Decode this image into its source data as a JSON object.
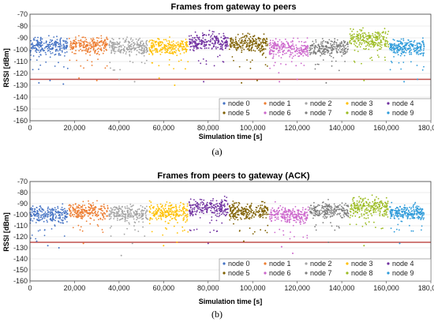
{
  "chart_data": [
    {
      "type": "scatter",
      "panel_label": "(a)",
      "title": "Frames from gateway to peers",
      "xlabel": "Simulation time [s]",
      "ylabel": "RSSI [dBm]",
      "xlim": [
        0,
        180000
      ],
      "ylim": [
        -160,
        -70
      ],
      "xticks": [
        "0",
        "20,000",
        "40,000",
        "60,000",
        "80,000",
        "100,000",
        "120,000",
        "140,000",
        "160,000",
        "180,000"
      ],
      "yticks": [
        "-70",
        "-80",
        "-90",
        "-100",
        "-110",
        "-120",
        "-130",
        "-140",
        "-150",
        "-160"
      ],
      "threshold": -125,
      "grid": true,
      "legend_position": "bottom-right",
      "series": [
        {
          "name": "node 0",
          "color": "#4472c4",
          "t_range": [
            0,
            17000
          ],
          "rssi_range": [
            -108,
            -86
          ],
          "outliers": [
            [
              4000,
              -128
            ],
            [
              9000,
              -126
            ],
            [
              15000,
              -129
            ]
          ]
        },
        {
          "name": "node 1",
          "color": "#ed7d31",
          "t_range": [
            17500,
            35000
          ],
          "rssi_range": [
            -106,
            -86
          ],
          "outliers": [
            [
              22000,
              -124
            ],
            [
              30000,
              -126
            ]
          ]
        },
        {
          "name": "node 2",
          "color": "#a5a5a5",
          "t_range": [
            35500,
            53000
          ],
          "rssi_range": [
            -108,
            -88
          ],
          "outliers": [
            [
              40000,
              -125
            ],
            [
              47000,
              -127
            ]
          ]
        },
        {
          "name": "node 3",
          "color": "#ffc000",
          "t_range": [
            53500,
            71000
          ],
          "rssi_range": [
            -108,
            -88
          ],
          "outliers": [
            [
              58000,
              -124
            ],
            [
              65000,
              -130
            ]
          ]
        },
        {
          "name": "node 4",
          "color": "#7030a0",
          "t_range": [
            71500,
            89000
          ],
          "rssi_range": [
            -104,
            -82
          ],
          "outliers": [
            [
              78000,
              -127
            ]
          ]
        },
        {
          "name": "node 5",
          "color": "#7f6000",
          "t_range": [
            89500,
            107000
          ],
          "rssi_range": [
            -106,
            -84
          ],
          "outliers": [
            [
              95000,
              -128
            ],
            [
              102000,
              -126
            ]
          ]
        },
        {
          "name": "node 6",
          "color": "#cc66cc",
          "t_range": [
            107500,
            125000
          ],
          "rssi_range": [
            -110,
            -88
          ],
          "outliers": [
            [
              112000,
              -127
            ],
            [
              120000,
              -125
            ]
          ]
        },
        {
          "name": "node 7",
          "color": "#7f7f7f",
          "t_range": [
            125500,
            143000
          ],
          "rssi_range": [
            -108,
            -88
          ],
          "outliers": [
            [
              133000,
              -128
            ]
          ]
        },
        {
          "name": "node 8",
          "color": "#9bbb20",
          "t_range": [
            143500,
            161000
          ],
          "rssi_range": [
            -104,
            -80
          ],
          "outliers": [
            [
              150000,
              -126
            ]
          ]
        },
        {
          "name": "node 9",
          "color": "#2e9bda",
          "t_range": [
            161500,
            177000
          ],
          "rssi_range": [
            -108,
            -88
          ],
          "outliers": [
            [
              168000,
              -127
            ],
            [
              174000,
              -125
            ]
          ]
        }
      ]
    },
    {
      "type": "scatter",
      "panel_label": "(b)",
      "title": "Frames from peers to gateway (ACK)",
      "xlabel": "Simulation time [s]",
      "ylabel": "RSSI [dBm]",
      "xlim": [
        0,
        180000
      ],
      "ylim": [
        -160,
        -70
      ],
      "xticks": [
        "0",
        "20,000",
        "40,000",
        "60,000",
        "80,000",
        "100,000",
        "120,000",
        "140,000",
        "160,000",
        "180,000"
      ],
      "yticks": [
        "-70",
        "-80",
        "-90",
        "-100",
        "-110",
        "-120",
        "-130",
        "-140",
        "-150",
        "-160"
      ],
      "threshold": -125,
      "grid": true,
      "legend_position": "bottom-right",
      "series": [
        {
          "name": "node 0",
          "color": "#4472c4",
          "t_range": [
            0,
            17000
          ],
          "rssi_range": [
            -112,
            -88
          ],
          "outliers": [
            [
              3000,
              -124
            ],
            [
              8000,
              -128
            ],
            [
              13000,
              -130
            ]
          ]
        },
        {
          "name": "node 1",
          "color": "#ed7d31",
          "t_range": [
            17500,
            35000
          ],
          "rssi_range": [
            -108,
            -86
          ],
          "outliers": [
            [
              24000,
              -126
            ]
          ]
        },
        {
          "name": "node 2",
          "color": "#a5a5a5",
          "t_range": [
            35500,
            53000
          ],
          "rssi_range": [
            -110,
            -88
          ],
          "outliers": [
            [
              41000,
              -137
            ],
            [
              46000,
              -126
            ]
          ]
        },
        {
          "name": "node 3",
          "color": "#ffc000",
          "t_range": [
            53500,
            71000
          ],
          "rssi_range": [
            -110,
            -86
          ],
          "outliers": [
            [
              60000,
              -128
            ],
            [
              66000,
              -125
            ]
          ]
        },
        {
          "name": "node 4",
          "color": "#7030a0",
          "t_range": [
            71500,
            89000
          ],
          "rssi_range": [
            -106,
            -82
          ],
          "outliers": [
            [
              80000,
              -126
            ]
          ]
        },
        {
          "name": "node 5",
          "color": "#7f6000",
          "t_range": [
            89500,
            107000
          ],
          "rssi_range": [
            -108,
            -86
          ],
          "outliers": [
            [
              96000,
              -124
            ]
          ]
        },
        {
          "name": "node 6",
          "color": "#cc66cc",
          "t_range": [
            107500,
            125000
          ],
          "rssi_range": [
            -112,
            -88
          ],
          "outliers": [
            [
              113000,
              -129
            ],
            [
              118000,
              -135
            ]
          ]
        },
        {
          "name": "node 7",
          "color": "#7f7f7f",
          "t_range": [
            125500,
            143000
          ],
          "rssi_range": [
            -106,
            -86
          ],
          "outliers": [
            [
              134000,
              -125
            ]
          ]
        },
        {
          "name": "node 8",
          "color": "#9bbb20",
          "t_range": [
            143500,
            161000
          ],
          "rssi_range": [
            -106,
            -80
          ],
          "outliers": [
            [
              150000,
              -128
            ]
          ]
        },
        {
          "name": "node 9",
          "color": "#2e9bda",
          "t_range": [
            161500,
            177000
          ],
          "rssi_range": [
            -108,
            -88
          ],
          "outliers": [
            [
              166000,
              -126
            ]
          ]
        }
      ]
    }
  ],
  "colors": {
    "threshold_line": "#c0504d",
    "grid": "#d9d9d9",
    "axis": "#404040"
  }
}
